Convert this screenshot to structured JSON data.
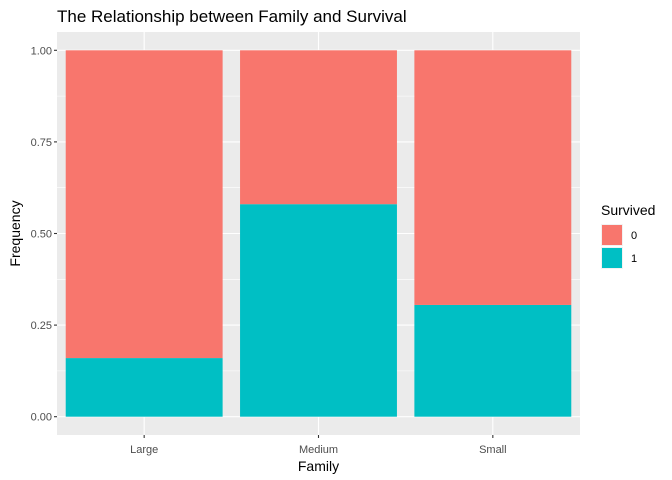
{
  "chart_data": {
    "type": "bar",
    "stacked": true,
    "title": "The Relationship between Family and Survival",
    "xlabel": "Family",
    "ylabel": "Frequency",
    "ylim": [
      0,
      1
    ],
    "y_ticks": [
      "0.00",
      "0.25",
      "0.50",
      "0.75",
      "1.00"
    ],
    "y_tick_values": [
      0,
      0.25,
      0.5,
      0.75,
      1
    ],
    "categories": [
      "Large",
      "Medium",
      "Small"
    ],
    "series": [
      {
        "name": "0",
        "values": [
          0.84,
          0.42,
          0.695
        ],
        "color": "#F8766D"
      },
      {
        "name": "1",
        "values": [
          0.16,
          0.58,
          0.305
        ],
        "color": "#00BFC4"
      }
    ],
    "legend": {
      "title": "Survived",
      "position": "right"
    },
    "grid": true,
    "panel_background": "#EBEBEB"
  }
}
